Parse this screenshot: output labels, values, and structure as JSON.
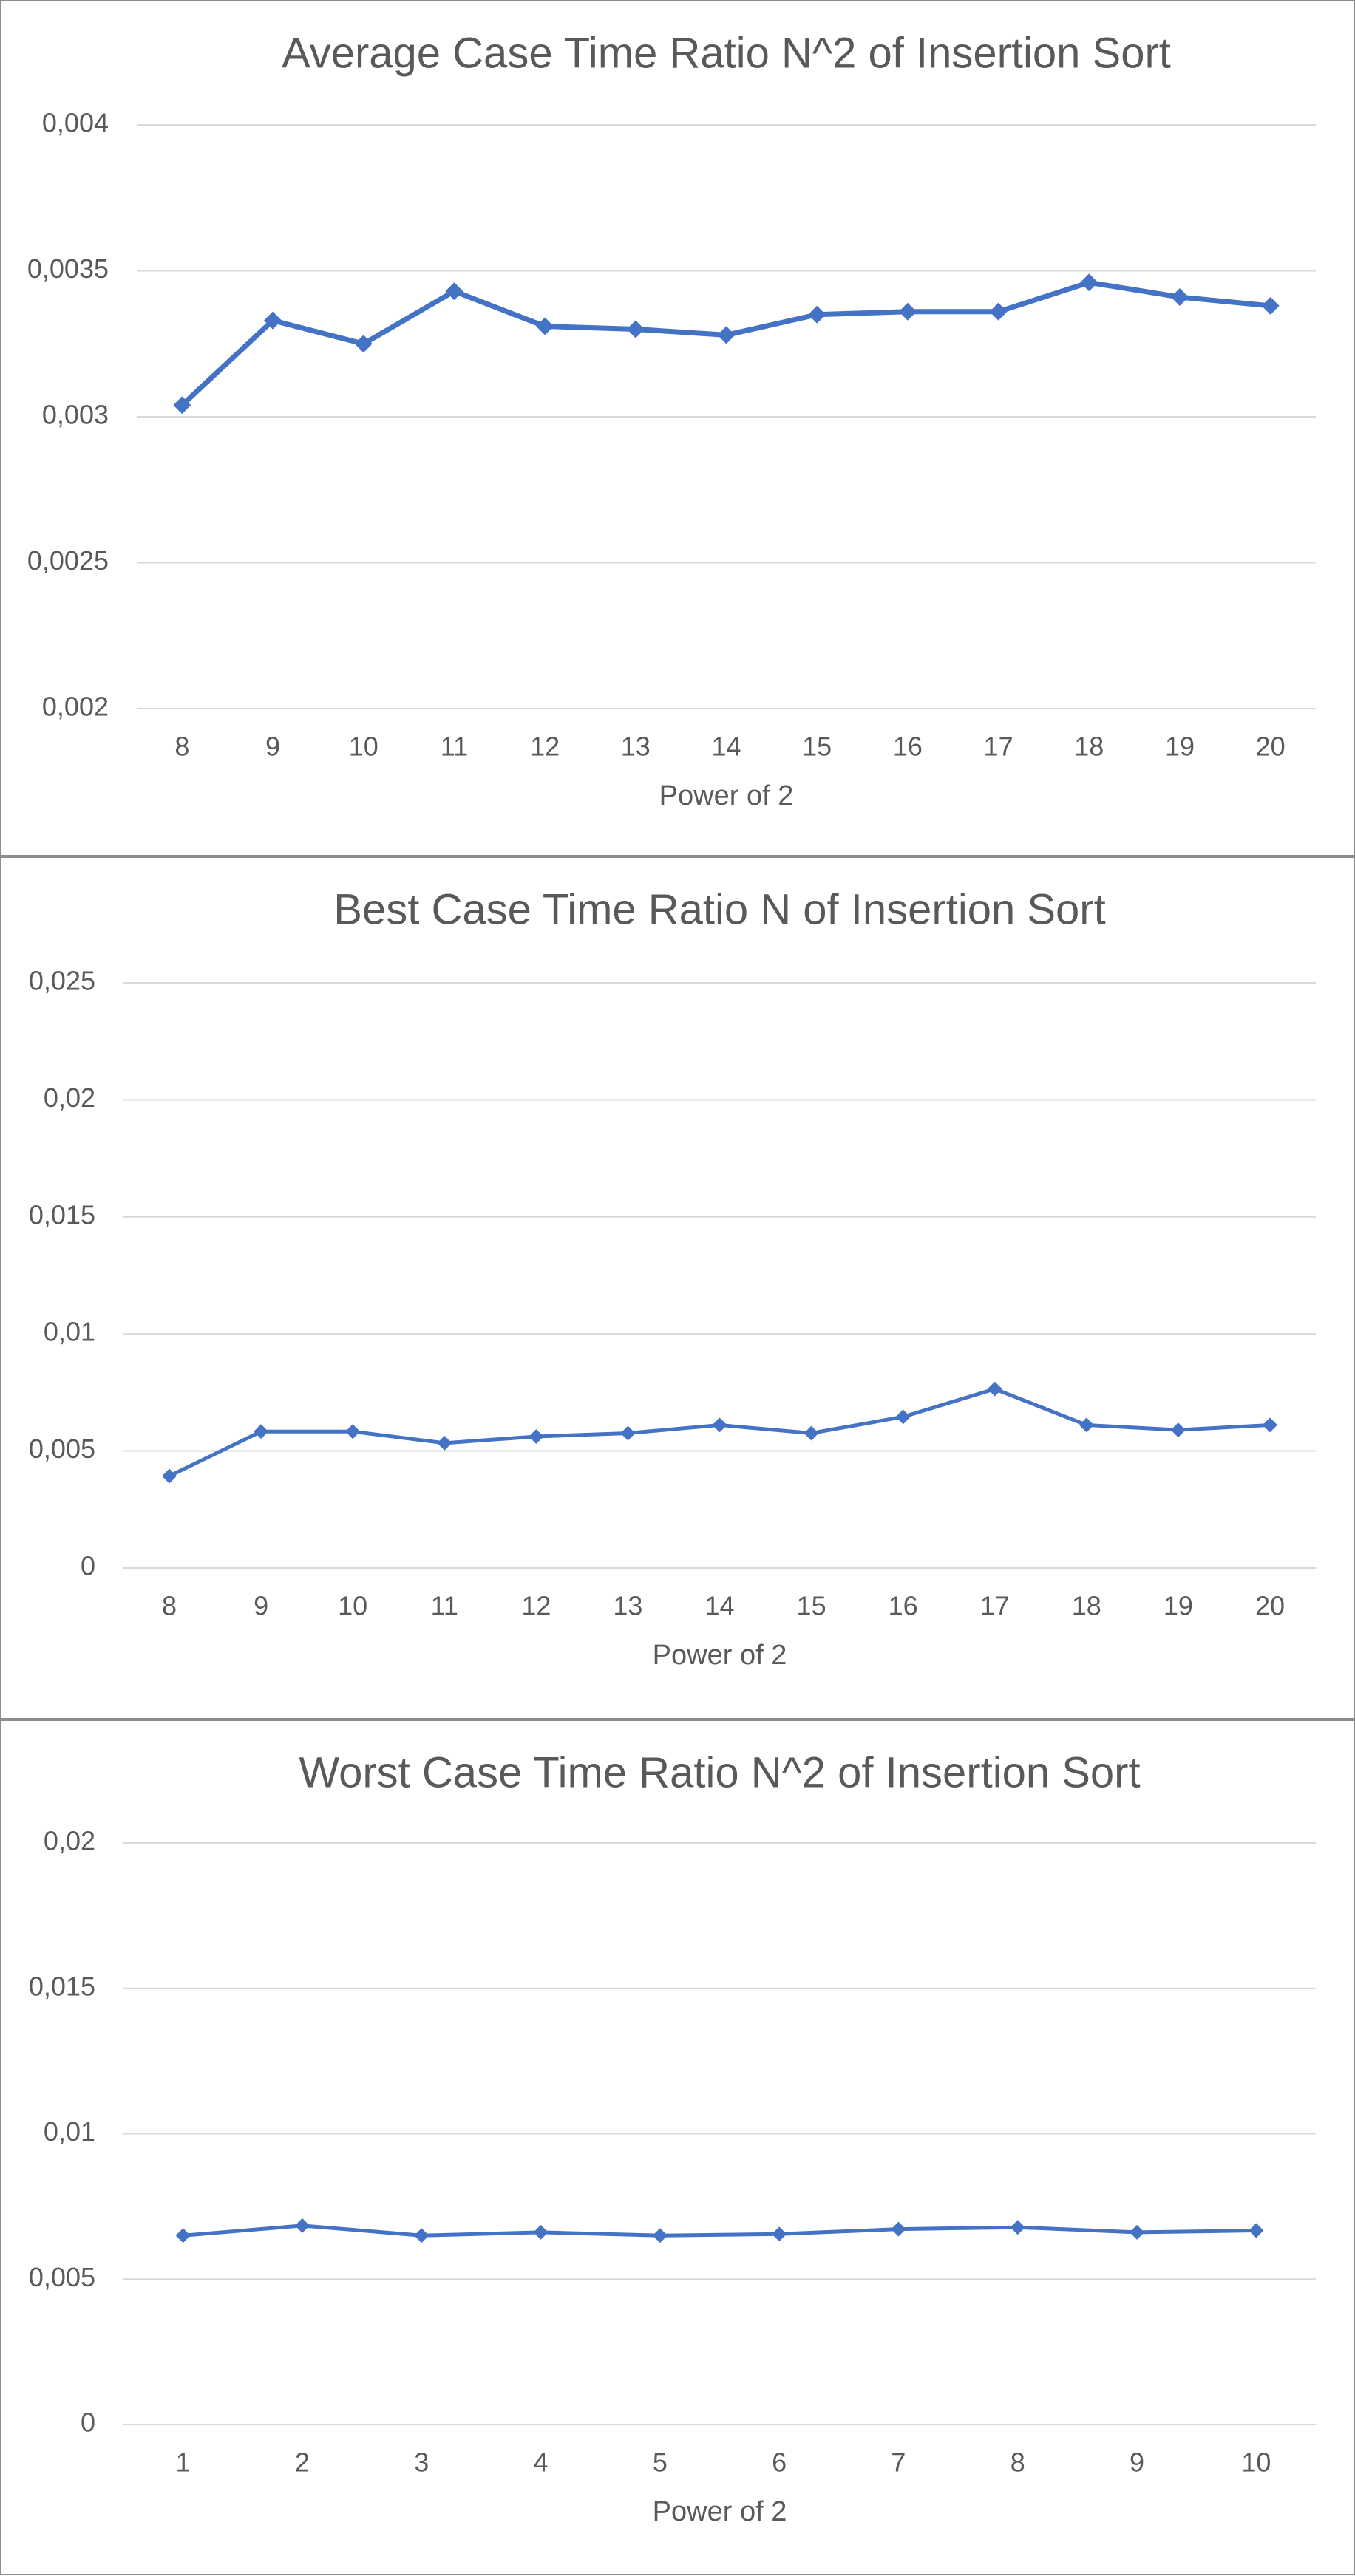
{
  "chart_data": [
    {
      "type": "line",
      "title": "Average Case Time Ratio N^2 of Insertion Sort",
      "x_label": "Power of 2",
      "categories": [
        "8",
        "9",
        "10",
        "11",
        "12",
        "13",
        "14",
        "15",
        "16",
        "17",
        "18",
        "19",
        "20"
      ],
      "values": [
        0.00304,
        0.00333,
        0.00325,
        0.00343,
        0.00331,
        0.0033,
        0.00328,
        0.00335,
        0.00336,
        0.00336,
        0.00346,
        0.00341,
        0.00338
      ],
      "color": "#4472c4",
      "ylim": [
        0.002,
        0.004
      ],
      "yticks": [
        {
          "value": 0.002,
          "label": "0,002"
        },
        {
          "value": 0.0025,
          "label": "0,0025"
        },
        {
          "value": 0.003,
          "label": "0,003"
        },
        {
          "value": 0.0035,
          "label": "0,0035"
        },
        {
          "value": 0.004,
          "label": "0,004"
        }
      ],
      "grid": true
    },
    {
      "type": "line",
      "title": "Best Case Time Ratio N of Insertion Sort",
      "x_label": "Power of 2",
      "categories": [
        "8",
        "9",
        "10",
        "11",
        "12",
        "13",
        "14",
        "15",
        "16",
        "17",
        "18",
        "19",
        "20"
      ],
      "values": [
        0.00393,
        0.00583,
        0.00583,
        0.00534,
        0.00562,
        0.00576,
        0.00611,
        0.00576,
        0.00646,
        0.00765,
        0.00611,
        0.0059,
        0.00611
      ],
      "color": "#4472c4",
      "ylim": [
        0,
        0.025
      ],
      "yticks": [
        0,
        {
          "value": 0.005,
          "label": "0,005"
        },
        {
          "value": 0.01,
          "label": "0,01"
        },
        {
          "value": 0.015,
          "label": "0,015"
        },
        {
          "value": 0.02,
          "label": "0,02"
        },
        {
          "value": 0.025,
          "label": "0,025"
        }
      ],
      "grid": true
    },
    {
      "type": "line",
      "title": "Worst Case Time Ratio N^2 of Insertion Sort",
      "x_label": "Power of 2",
      "categories": [
        "1",
        "2",
        "3",
        "4",
        "5",
        "6",
        "7",
        "8",
        "9",
        "10"
      ],
      "values": [
        0.0065,
        0.00684,
        0.0065,
        0.00661,
        0.0065,
        0.00655,
        0.00672,
        0.00678,
        0.00661,
        0.00667
      ],
      "color": "#4472c4",
      "ylim": [
        0,
        0.02
      ],
      "yticks": [
        0,
        {
          "value": 0.005,
          "label": "0,005"
        },
        {
          "value": 0.01,
          "label": "0,01"
        },
        {
          "value": 0.015,
          "label": "0,015"
        },
        {
          "value": 0.02,
          "label": "0,02"
        }
      ],
      "grid": true
    }
  ]
}
